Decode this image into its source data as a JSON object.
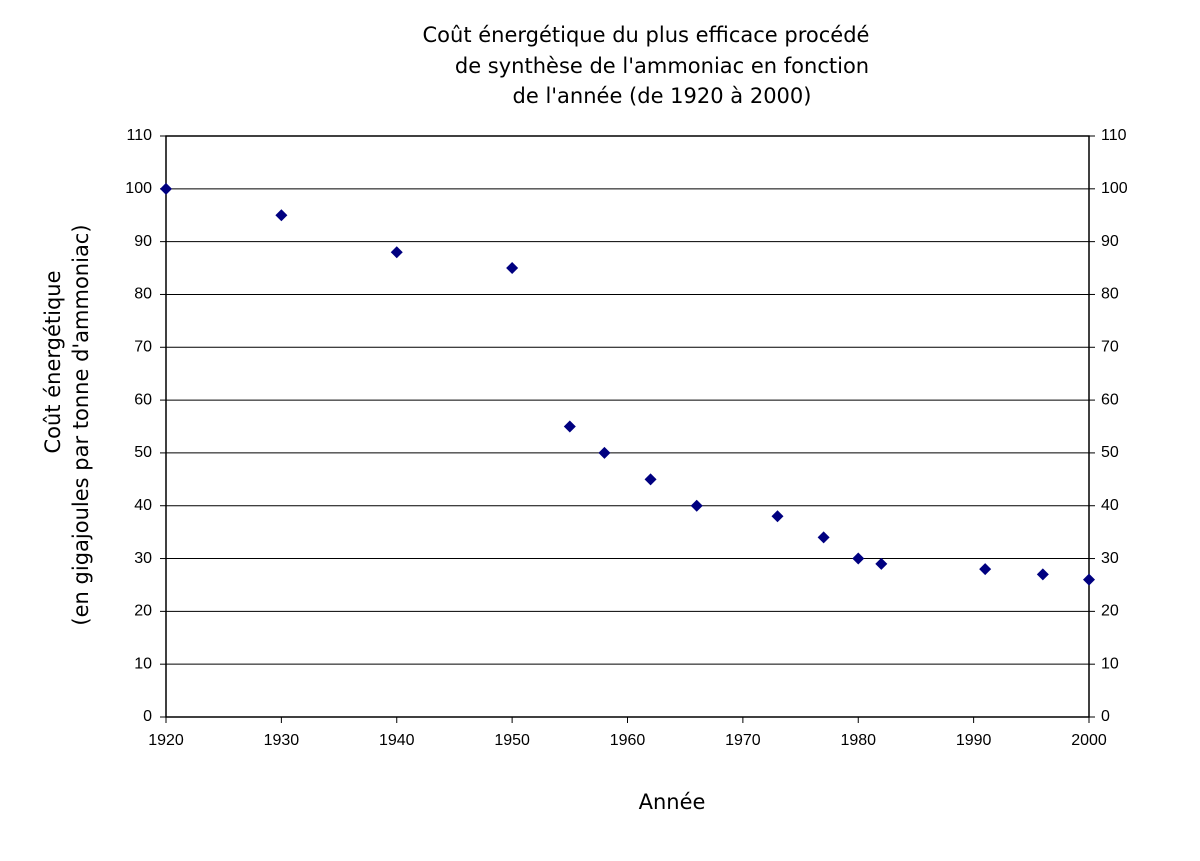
{
  "chart_data": {
    "type": "scatter",
    "title": [
      "Coût énergétique du plus efficace procédé",
      "de synthèse de l'ammoniac en fonction",
      "de l'année (de 1920 à 2000)"
    ],
    "x_label": "Année",
    "y_label": [
      "Coût énergétique",
      "(en gigajoules par tonne d'ammoniac)"
    ],
    "x": [
      1920,
      1930,
      1940,
      1950,
      1955,
      1958,
      1962,
      1966,
      1973,
      1977,
      1980,
      1982,
      1991,
      1996,
      2000
    ],
    "values": [
      100,
      95,
      88,
      85,
      55,
      50,
      45,
      40,
      38,
      34,
      30,
      29,
      28,
      27,
      26
    ],
    "color": "#000080",
    "xlim": [
      1920,
      2000
    ],
    "xticks": [
      1920,
      1930,
      1940,
      1950,
      1960,
      1970,
      1980,
      1990,
      2000
    ],
    "ylim": [
      0,
      110
    ],
    "yticks": [
      0,
      10,
      20,
      30,
      40,
      50,
      60,
      70,
      80,
      90,
      100,
      110
    ],
    "y2lim": [
      0,
      110
    ],
    "y2ticks": [
      0,
      10,
      20,
      30,
      40,
      50,
      60,
      70,
      80,
      90,
      100,
      110
    ],
    "grid": true
  }
}
